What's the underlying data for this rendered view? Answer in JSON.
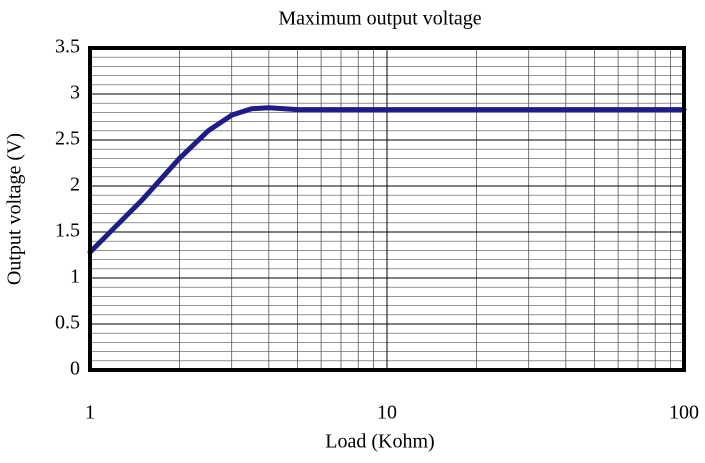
{
  "chart_data": {
    "type": "line",
    "title": "Maximum output voltage",
    "xlabel": "Load (Kohm)",
    "ylabel": "Output voltage (V)",
    "x": [
      1,
      1.5,
      2,
      2.5,
      3,
      3.5,
      4,
      5,
      10,
      20,
      50,
      100
    ],
    "series": [
      {
        "name": "Maximum output voltage",
        "color": "#1c1c8a",
        "values": [
          1.28,
          1.85,
          2.3,
          2.6,
          2.77,
          2.84,
          2.85,
          2.83,
          2.83,
          2.83,
          2.83,
          2.83
        ]
      }
    ],
    "xlim": [
      1,
      100
    ],
    "xticks": [
      1,
      10,
      100
    ],
    "xscale": "log",
    "ylim": [
      0,
      3.5
    ],
    "yticks": [
      0,
      0.5,
      1,
      1.5,
      2,
      2.5,
      3,
      3.5
    ],
    "grid": true
  }
}
